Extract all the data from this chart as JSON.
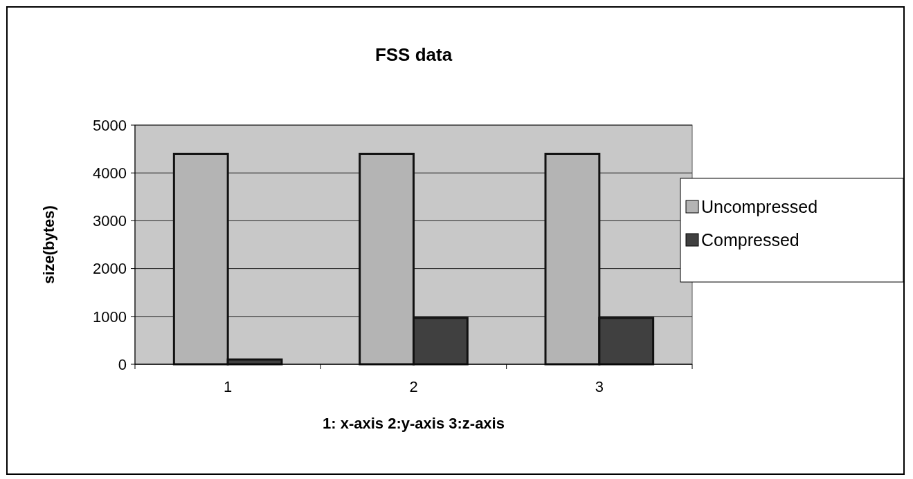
{
  "chart_data": {
    "type": "bar",
    "title": "FSS data",
    "xlabel": "1: x-axis 2:y-axis  3:z-axis",
    "ylabel": "size(bytes)",
    "categories": [
      "1",
      "2",
      "3"
    ],
    "series": [
      {
        "name": "Uncompressed",
        "color": "#b4b4b4",
        "values": [
          4400,
          4400,
          4400
        ]
      },
      {
        "name": "Compressed",
        "color": "#404040",
        "values": [
          100,
          970,
          970
        ]
      }
    ],
    "ylim": [
      0,
      5000
    ],
    "yticks": [
      0,
      1000,
      2000,
      3000,
      4000,
      5000
    ],
    "grid": "y",
    "legend": "right"
  }
}
